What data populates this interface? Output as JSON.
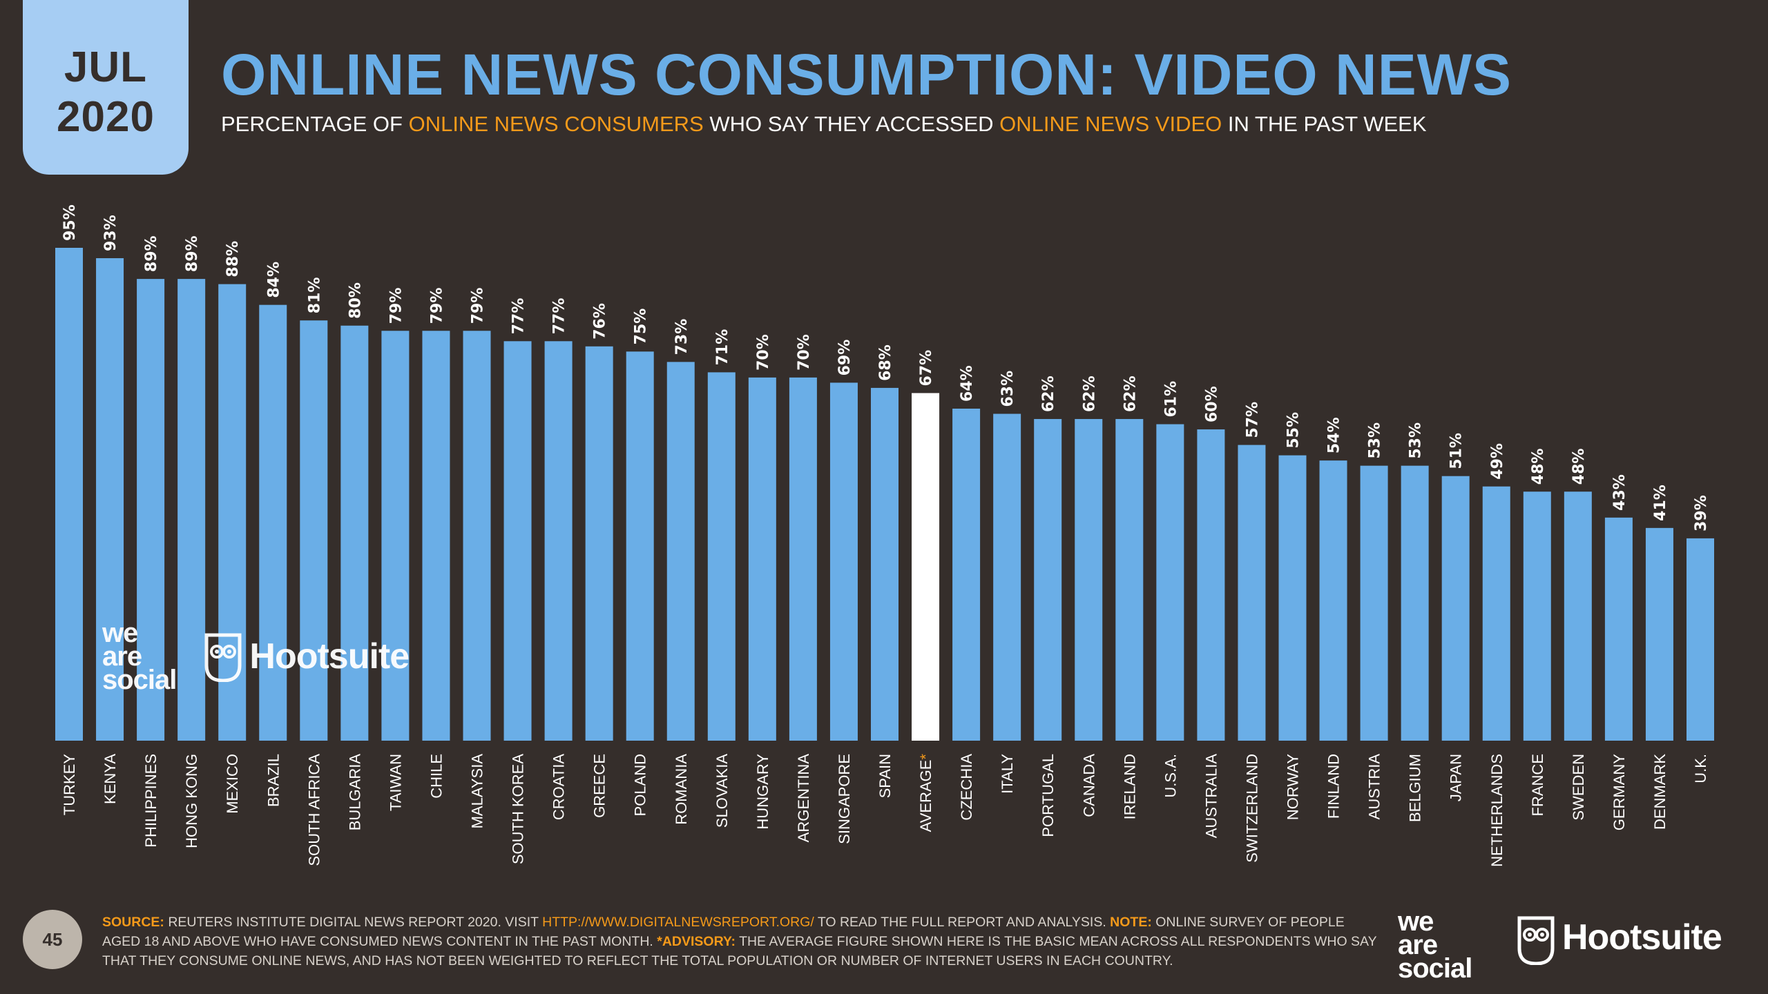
{
  "date_tab": {
    "month": "JUL",
    "year": "2020"
  },
  "title": "ONLINE NEWS CONSUMPTION: VIDEO NEWS",
  "subtitle": {
    "part1": "PERCENTAGE OF ",
    "highlight1": "ONLINE NEWS CONSUMERS",
    "part2": " WHO SAY THEY ACCESSED ",
    "highlight2": "ONLINE NEWS VIDEO",
    "part3": " IN THE PAST WEEK"
  },
  "colors": {
    "background": "#352e2b",
    "bar": "#6aaee7",
    "highlight_bar": "#ffffff",
    "accent": "#f59a1a",
    "date_tab": "#a6cdf3"
  },
  "chart_data": {
    "type": "bar",
    "title": "ONLINE NEWS CONSUMPTION: VIDEO NEWS",
    "xlabel": "",
    "ylabel": "",
    "ylim": [
      0,
      100
    ],
    "grid": false,
    "highlight_category": "AVERAGE*",
    "categories": [
      "TURKEY",
      "KENYA",
      "PHILIPPINES",
      "HONG KONG",
      "MEXICO",
      "BRAZIL",
      "SOUTH AFRICA",
      "BULGARIA",
      "TAIWAN",
      "CHILE",
      "MALAYSIA",
      "SOUTH KOREA",
      "CROATIA",
      "GREECE",
      "POLAND",
      "ROMANIA",
      "SLOVAKIA",
      "HUNGARY",
      "ARGENTINA",
      "SINGAPORE",
      "SPAIN",
      "AVERAGE*",
      "CZECHIA",
      "ITALY",
      "PORTUGAL",
      "CANADA",
      "IRELAND",
      "U.S.A.",
      "AUSTRALIA",
      "SWITZERLAND",
      "NORWAY",
      "FINLAND",
      "AUSTRIA",
      "BELGIUM",
      "JAPAN",
      "NETHERLANDS",
      "FRANCE",
      "SWEDEN",
      "GERMANY",
      "DENMARK",
      "U.K."
    ],
    "values": [
      95,
      93,
      89,
      89,
      88,
      84,
      81,
      80,
      79,
      79,
      79,
      77,
      77,
      76,
      75,
      73,
      71,
      70,
      70,
      69,
      68,
      67,
      64,
      63,
      62,
      62,
      62,
      61,
      60,
      57,
      55,
      54,
      53,
      53,
      51,
      49,
      48,
      48,
      43,
      41,
      39
    ],
    "value_suffix": "%"
  },
  "watermark": {
    "we": "we",
    "are": "are",
    "social": "social",
    "hootsuite": "Hootsuite"
  },
  "page_number": "45",
  "footnote": {
    "source_label": "SOURCE:",
    "source_text": " REUTERS INSTITUTE DIGITAL NEWS REPORT 2020. VISIT ",
    "link": "HTTP://WWW.DIGITALNEWSREPORT.ORG/",
    "after_link": " TO READ THE FULL REPORT AND ANALYSIS. ",
    "note_label": "NOTE:",
    "note_text": " ONLINE SURVEY OF PEOPLE AGED 18 AND ABOVE WHO HAVE CONSUMED NEWS CONTENT IN THE PAST MONTH. ",
    "advisory_label": "*ADVISORY:",
    "advisory_text": " THE AVERAGE FIGURE SHOWN HERE IS THE BASIC MEAN ACROSS ALL RESPONDENTS WHO SAY THAT THEY CONSUME ONLINE NEWS, AND HAS NOT BEEN WEIGHTED TO REFLECT THE TOTAL POPULATION OR NUMBER OF INTERNET USERS IN EACH COUNTRY."
  },
  "footer_logos": {
    "we": "we",
    "are": "are",
    "social": "social",
    "hootsuite": "Hootsuite"
  }
}
